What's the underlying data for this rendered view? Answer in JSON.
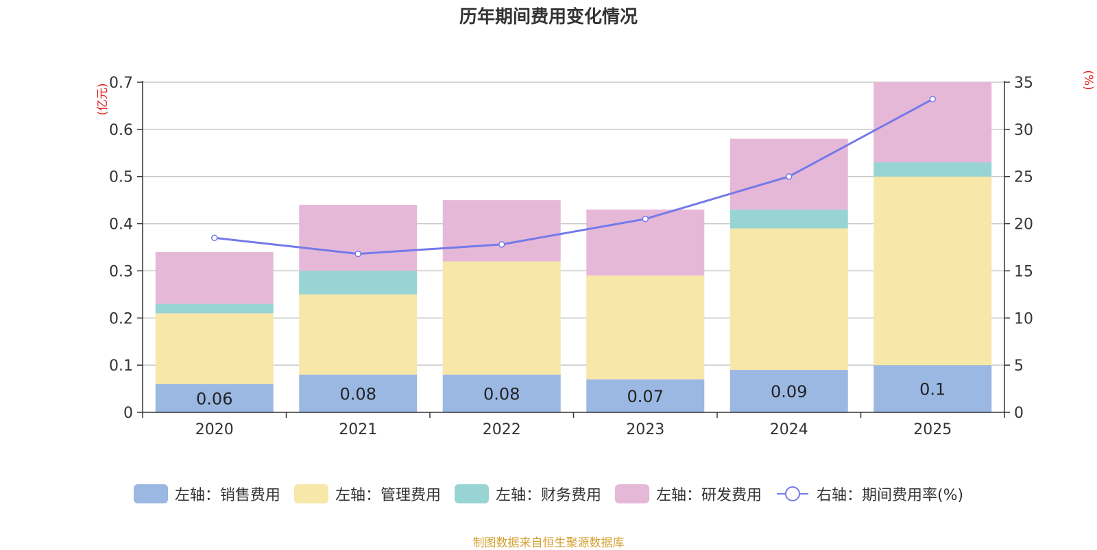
{
  "chart_data": {
    "type": "bar",
    "title": "历年期间费用变化情况",
    "categories": [
      "2020",
      "2021",
      "2022",
      "2023",
      "2024",
      "2025"
    ],
    "series": [
      {
        "name": "左轴：销售费用",
        "axis": "left",
        "color": "#9bb8e3",
        "values": [
          0.06,
          0.08,
          0.08,
          0.07,
          0.09,
          0.1
        ]
      },
      {
        "name": "左轴：管理费用",
        "axis": "left",
        "color": "#f7e7a8",
        "values": [
          0.15,
          0.17,
          0.24,
          0.22,
          0.3,
          0.4
        ]
      },
      {
        "name": "左轴：财务费用",
        "axis": "left",
        "color": "#98d4d4",
        "values": [
          0.02,
          0.05,
          0.0,
          0.0,
          0.04,
          0.03
        ]
      },
      {
        "name": "左轴：研发费用",
        "axis": "left",
        "color": "#e6b8d8",
        "values": [
          0.11,
          0.14,
          0.13,
          0.14,
          0.15,
          0.17
        ]
      }
    ],
    "line_series": {
      "name": "右轴：期间费用率(%)",
      "axis": "right",
      "color": "#7479e8",
      "values": [
        18.5,
        16.8,
        17.8,
        20.5,
        25.0,
        33.2
      ]
    },
    "data_labels": [
      "0.06",
      "0.08",
      "0.08",
      "0.07",
      "0.09",
      "0.1"
    ],
    "ylabel": "(亿元)",
    "ylabel_right": "(%)",
    "ylim": [
      0,
      0.7
    ],
    "ylim_right": [
      0,
      35
    ],
    "yticks": [
      "0",
      "0.1",
      "0.2",
      "0.3",
      "0.4",
      "0.5",
      "0.6",
      "0.7"
    ],
    "yticks_right": [
      "0",
      "5",
      "10",
      "15",
      "20",
      "25",
      "30",
      "35"
    ],
    "grid": true,
    "legend_position": "bottom"
  },
  "source": "制图数据来自恒生聚源数据库"
}
